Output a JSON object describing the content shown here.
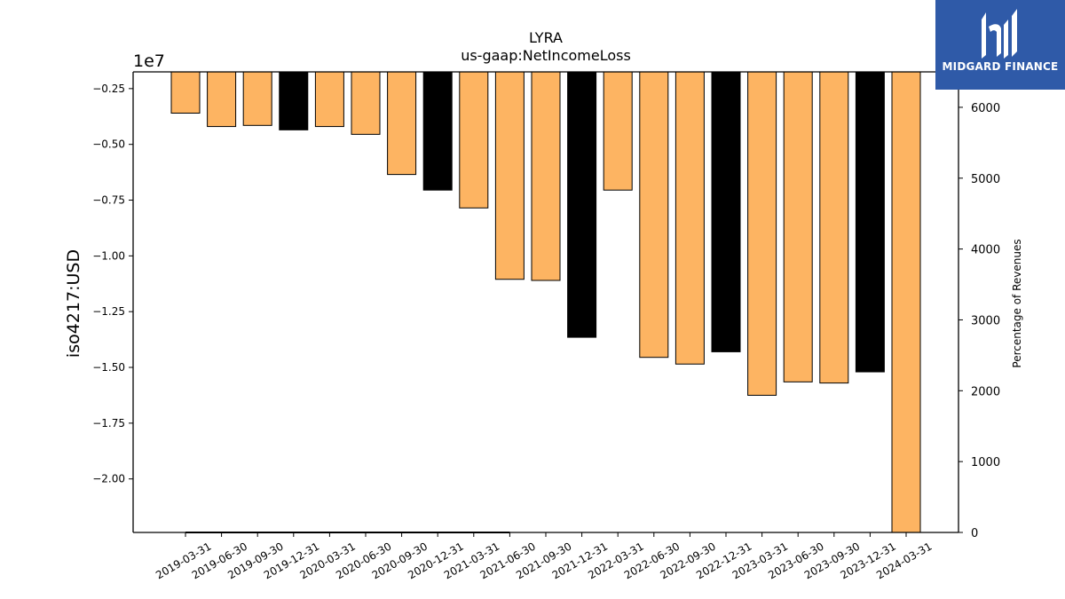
{
  "brand": {
    "name": "MIDGARD FINANCE",
    "logo_icon": "mf-monogram-icon",
    "color": "#2f5aa8"
  },
  "chart_data": {
    "type": "bar",
    "title": "LYRA",
    "subtitle": "us-gaap:NetIncomeLoss",
    "ylabel": "iso4217:USD",
    "y2label": "Percentage of Revenues",
    "offset_label": "1e7",
    "ylim": [
      -2.24,
      -0.175
    ],
    "y2lim": [
      0,
      6500
    ],
    "y_ticks": [
      -0.25,
      -0.5,
      -0.75,
      -1.0,
      -1.25,
      -1.5,
      -1.75,
      -2.0
    ],
    "y_tick_labels": [
      "−0.25",
      "−0.50",
      "−0.75",
      "−1.00",
      "−1.25",
      "−1.50",
      "−1.75",
      "−2.00"
    ],
    "y2_ticks": [
      0,
      1000,
      2000,
      3000,
      4000,
      5000,
      6000
    ],
    "y2_tick_labels": [
      "0",
      "1000",
      "2000",
      "3000",
      "4000",
      "5000",
      "6000"
    ],
    "categories": [
      "2019-03-31",
      "2019-06-30",
      "2019-09-30",
      "2019-12-31",
      "2020-03-31",
      "2020-06-30",
      "2020-09-30",
      "2020-12-31",
      "2021-03-31",
      "2021-06-30",
      "2021-09-30",
      "2021-12-31",
      "2022-03-31",
      "2022-06-30",
      "2022-09-30",
      "2022-12-31",
      "2023-03-31",
      "2023-06-30",
      "2023-09-30",
      "2023-12-31",
      "2024-03-31"
    ],
    "values": [
      -0.36,
      -0.42,
      -0.415,
      -0.435,
      -0.42,
      -0.455,
      -0.635,
      -0.705,
      -0.785,
      -1.105,
      -1.11,
      -1.365,
      -0.705,
      -1.455,
      -1.485,
      -1.43,
      -1.625,
      -1.565,
      -1.57,
      -1.52,
      -2.24
    ],
    "period_type": [
      "quarter",
      "quarter",
      "quarter",
      "annual",
      "quarter",
      "quarter",
      "quarter",
      "annual",
      "quarter",
      "quarter",
      "quarter",
      "annual",
      "quarter",
      "quarter",
      "quarter",
      "annual",
      "quarter",
      "quarter",
      "quarter",
      "annual",
      "quarter"
    ],
    "colors": {
      "quarter": "#fdb462",
      "annual": "#000000"
    },
    "percentage_of_revenues": [
      0,
      0,
      0,
      0,
      0,
      0,
      0,
      0,
      0,
      0
    ],
    "grid": false
  }
}
